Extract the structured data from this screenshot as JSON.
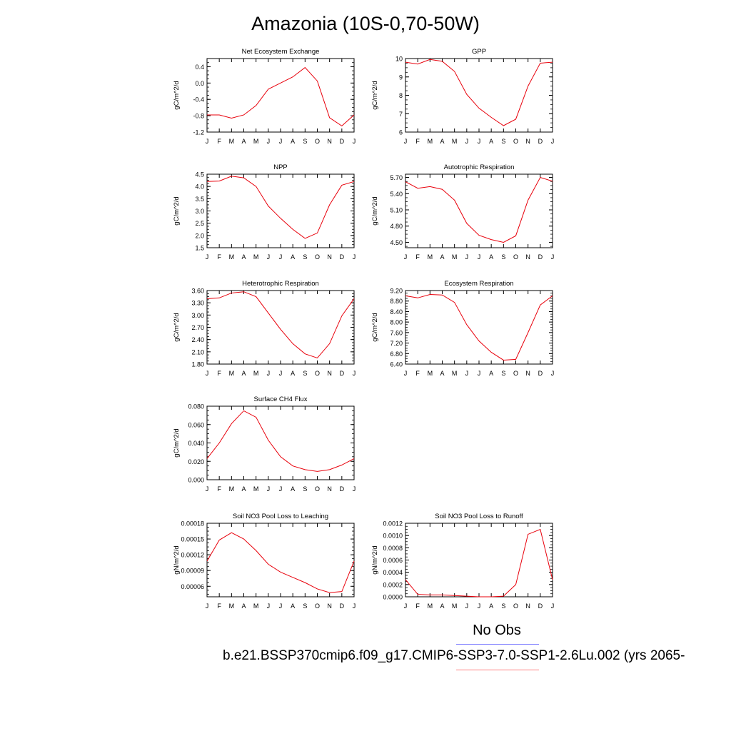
{
  "figure": {
    "title": "Amazonia (10S-0,70-50W)",
    "legend": {
      "obs_label": "No Obs",
      "obs_color": "#7b7bff",
      "case_label": "b.e21.BSSP370cmip6.f09_g17.CMIP6-SSP3-7.0-SSP1-2.6Lu.002 (yrs 2065-",
      "case_color": "#ff8080"
    },
    "line_color": "#e8000b"
  },
  "chart_data": [
    {
      "type": "line",
      "title": "Net Ecosystem Exchange",
      "ylabel": "gC/m^2/d",
      "categories": [
        "J",
        "F",
        "M",
        "A",
        "M",
        "J",
        "J",
        "A",
        "S",
        "O",
        "N",
        "D",
        "J"
      ],
      "ylim": [
        -1.2,
        0.6
      ],
      "yticks": [
        -1.2,
        -0.8,
        -0.4,
        0.0,
        0.4
      ],
      "ytick_labels": [
        "-1.2",
        "-0.8",
        "-0.4",
        "0.0",
        "0.4"
      ],
      "values": [
        -0.78,
        -0.78,
        -0.86,
        -0.78,
        -0.55,
        -0.15,
        0.0,
        0.15,
        0.38,
        0.05,
        -0.85,
        -1.05,
        -0.78
      ]
    },
    {
      "type": "line",
      "title": "GPP",
      "ylabel": "gC/m^2/d",
      "categories": [
        "J",
        "F",
        "M",
        "A",
        "M",
        "J",
        "J",
        "A",
        "S",
        "O",
        "N",
        "D",
        "J"
      ],
      "ylim": [
        6,
        10
      ],
      "yticks": [
        6,
        7,
        8,
        9,
        10
      ],
      "ytick_labels": [
        "6",
        "7",
        "8",
        "9",
        "10"
      ],
      "values": [
        9.8,
        9.7,
        9.95,
        9.85,
        9.3,
        8.05,
        7.3,
        6.8,
        6.35,
        6.7,
        8.5,
        9.75,
        9.8
      ]
    },
    {
      "type": "line",
      "title": "NPP",
      "ylabel": "gC/m^2/d",
      "categories": [
        "J",
        "F",
        "M",
        "A",
        "M",
        "J",
        "J",
        "A",
        "S",
        "O",
        "N",
        "D",
        "J"
      ],
      "ylim": [
        1.5,
        4.5
      ],
      "yticks": [
        1.5,
        2.0,
        2.5,
        3.0,
        3.5,
        4.0,
        4.5
      ],
      "ytick_labels": [
        "1.5",
        "2.0",
        "2.5",
        "3.0",
        "3.5",
        "4.0",
        "4.5"
      ],
      "values": [
        4.2,
        4.22,
        4.42,
        4.35,
        4.0,
        3.2,
        2.7,
        2.25,
        1.88,
        2.1,
        3.25,
        4.05,
        4.2
      ]
    },
    {
      "type": "line",
      "title": "Autotrophic Respiration",
      "ylabel": "gC/m^2/d",
      "categories": [
        "J",
        "F",
        "M",
        "A",
        "M",
        "J",
        "J",
        "A",
        "S",
        "O",
        "N",
        "D",
        "J"
      ],
      "ylim": [
        4.4,
        5.76
      ],
      "yticks": [
        4.5,
        4.8,
        5.1,
        5.4,
        5.7
      ],
      "ytick_labels": [
        "4.50",
        "4.80",
        "5.10",
        "5.40",
        "5.70"
      ],
      "values": [
        5.62,
        5.5,
        5.53,
        5.48,
        5.28,
        4.85,
        4.63,
        4.55,
        4.5,
        4.62,
        5.28,
        5.7,
        5.63
      ]
    },
    {
      "type": "line",
      "title": "Heterotrophic Respiration",
      "ylabel": "gC/m^2/d",
      "categories": [
        "J",
        "F",
        "M",
        "A",
        "M",
        "J",
        "J",
        "A",
        "S",
        "O",
        "N",
        "D",
        "J"
      ],
      "ylim": [
        1.8,
        3.6
      ],
      "yticks": [
        1.8,
        2.1,
        2.4,
        2.7,
        3.0,
        3.3,
        3.6
      ],
      "ytick_labels": [
        "1.80",
        "2.10",
        "2.40",
        "2.70",
        "3.00",
        "3.30",
        "3.60"
      ],
      "values": [
        3.4,
        3.42,
        3.54,
        3.57,
        3.45,
        3.05,
        2.65,
        2.3,
        2.05,
        1.95,
        2.3,
        2.98,
        3.4
      ]
    },
    {
      "type": "line",
      "title": "Ecosystem Respiration",
      "ylabel": "gC/m^2/d",
      "categories": [
        "J",
        "F",
        "M",
        "A",
        "M",
        "J",
        "J",
        "A",
        "S",
        "O",
        "N",
        "D",
        "J"
      ],
      "ylim": [
        6.4,
        9.2
      ],
      "yticks": [
        6.4,
        6.8,
        7.2,
        7.6,
        8.0,
        8.4,
        8.8,
        9.2
      ],
      "ytick_labels": [
        "6.40",
        "6.80",
        "7.20",
        "7.60",
        "8.00",
        "8.40",
        "8.80",
        "9.20"
      ],
      "values": [
        9.0,
        8.92,
        9.05,
        9.03,
        8.75,
        7.9,
        7.28,
        6.85,
        6.55,
        6.58,
        7.6,
        8.65,
        9.0
      ]
    },
    {
      "type": "line",
      "title": "Surface CH4 Flux",
      "ylabel": "gC/m^2/d",
      "categories": [
        "J",
        "F",
        "M",
        "A",
        "M",
        "J",
        "J",
        "A",
        "S",
        "O",
        "N",
        "D",
        "J"
      ],
      "ylim": [
        0,
        0.08
      ],
      "yticks": [
        0,
        0.02,
        0.04,
        0.06,
        0.08
      ],
      "ytick_labels": [
        "0.000",
        "0.020",
        "0.040",
        "0.060",
        "0.080"
      ],
      "values": [
        0.023,
        0.04,
        0.061,
        0.075,
        0.068,
        0.043,
        0.025,
        0.015,
        0.011,
        0.009,
        0.011,
        0.016,
        0.023
      ]
    },
    {
      "type": "line",
      "title": "Soil NO3 Pool Loss to Leaching",
      "ylabel": "gN/m^2/d",
      "categories": [
        "J",
        "F",
        "M",
        "A",
        "M",
        "J",
        "J",
        "A",
        "S",
        "O",
        "N",
        "D",
        "J"
      ],
      "ylim": [
        4e-05,
        0.00018
      ],
      "yticks": [
        6e-05,
        9e-05,
        0.00012,
        0.00015,
        0.00018
      ],
      "ytick_labels": [
        "0.00006",
        "0.00009",
        "0.00012",
        "0.00015",
        "0.00018"
      ],
      "values": [
        0.000108,
        0.000148,
        0.000162,
        0.00015,
        0.000128,
        0.000102,
        8.7e-05,
        7.7e-05,
        6.7e-05,
        5.5e-05,
        4.8e-05,
        5e-05,
        0.000108
      ]
    },
    {
      "type": "line",
      "title": "Soil NO3 Pool Loss to Runoff",
      "ylabel": "gN/m^2/d",
      "categories": [
        "J",
        "F",
        "M",
        "A",
        "M",
        "J",
        "J",
        "A",
        "S",
        "O",
        "N",
        "D",
        "J"
      ],
      "ylim": [
        0,
        0.0012
      ],
      "yticks": [
        0,
        0.0002,
        0.0004,
        0.0006,
        0.0008,
        0.001,
        0.0012
      ],
      "ytick_labels": [
        "0.0000",
        "0.0002",
        "0.0004",
        "0.0006",
        "0.0008",
        "0.0010",
        "0.0012"
      ],
      "values": [
        0.00028,
        4e-05,
        3e-05,
        3e-05,
        2e-05,
        1e-05,
        0.0,
        0.0,
        1e-05,
        0.0002,
        0.00102,
        0.0011,
        0.00028
      ]
    }
  ]
}
